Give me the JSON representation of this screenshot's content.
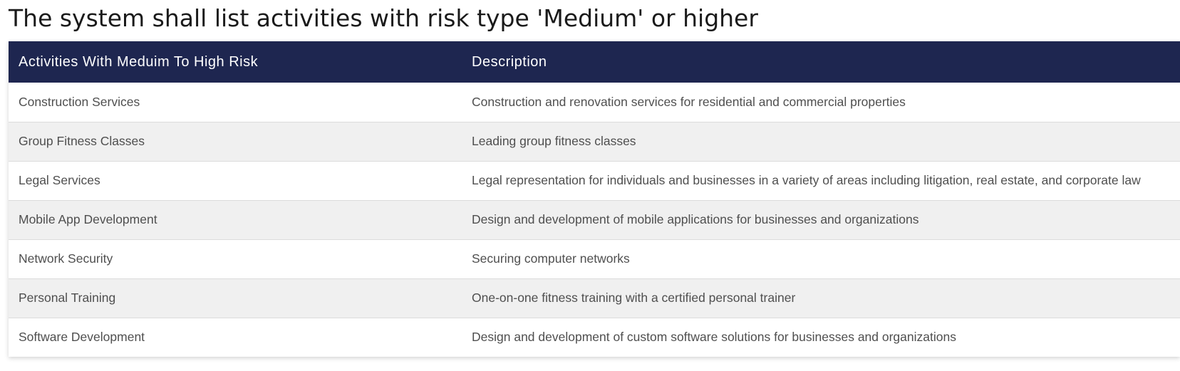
{
  "page": {
    "title": "The system shall list activities with risk type 'Medium' or higher"
  },
  "table": {
    "columns": [
      "Activities With Meduim To High Risk",
      "Description"
    ],
    "rows": [
      [
        "Construction Services",
        "Construction and renovation services for residential and commercial properties"
      ],
      [
        "Group Fitness Classes",
        "Leading group fitness classes"
      ],
      [
        "Legal Services",
        "Legal representation for individuals and businesses in a variety of areas including litigation, real estate, and corporate law"
      ],
      [
        "Mobile App Development",
        "Design and development of mobile applications for businesses and organizations"
      ],
      [
        "Network Security",
        "Securing computer networks"
      ],
      [
        "Personal Training",
        "One-on-one fitness training with a certified personal trainer"
      ],
      [
        "Software Development",
        "Design and development of custom software solutions for businesses and organizations"
      ]
    ]
  },
  "colors": {
    "header_background": "#1e2650",
    "header_text": "#ffffff",
    "row_alt_background": "#f0f0f0",
    "body_text": "#4f4f4f"
  }
}
